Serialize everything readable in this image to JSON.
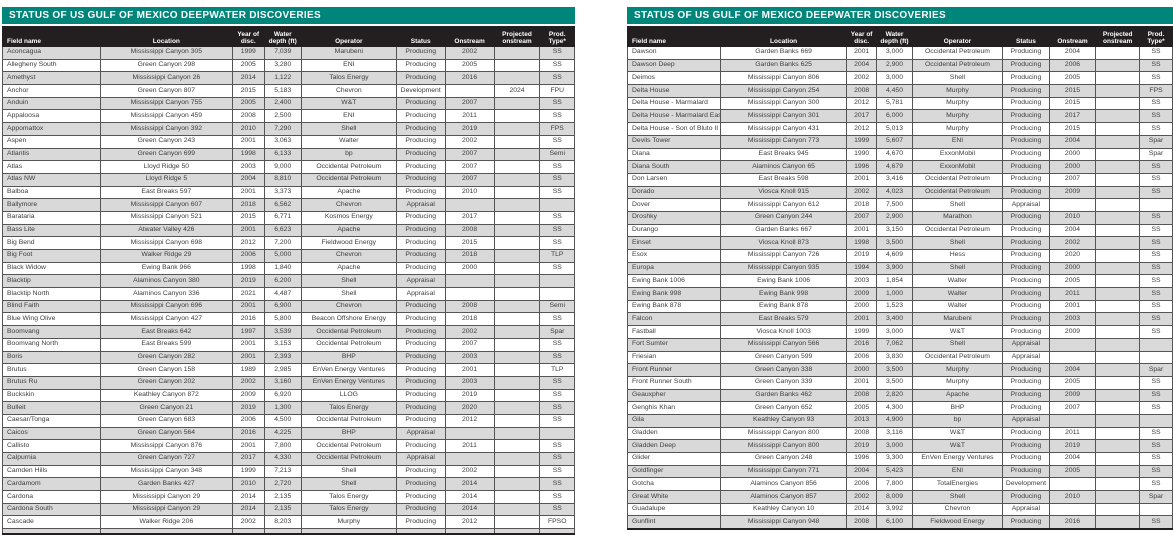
{
  "page_title": "STATUS OF US GULF OF MEXICO DEEPWATER DISCOVERIES",
  "colors": {
    "title_bar_teal": "#00857B",
    "header_black": "#231F20",
    "shaded_row_gray": "#D9D9D9",
    "row_white": "#FFFFFF",
    "cell_text": "#3D3D3D"
  },
  "columns": [
    "Field name",
    "Location",
    "Year of disc.",
    "Water depth (ft)",
    "Operator",
    "Status",
    "Onstream",
    "Projected onstream",
    "Prod. Type*"
  ],
  "tables": [
    {
      "name": "fields-a-to-c",
      "shaded_first_row": true,
      "partial_row_visible": true,
      "rows": [
        [
          "Aconcagua",
          "Mississippi Canyon 305",
          "1999",
          "7,039",
          "Marubeni",
          "Producing",
          "2002",
          "",
          "SS"
        ],
        [
          "Allegheny South",
          "Green Canyon 298",
          "2005",
          "3,280",
          "ENI",
          "Producing",
          "2005",
          "",
          "SS"
        ],
        [
          "Amethyst",
          "Mississippi Canyon 26",
          "2014",
          "1,122",
          "Talos Energy",
          "Producing",
          "2016",
          "",
          "SS"
        ],
        [
          "Anchor",
          "Green Canyon 807",
          "2015",
          "5,183",
          "Chevron",
          "Development",
          "",
          "2024",
          "FPU"
        ],
        [
          "Anduin",
          "Mississippi Canyon 755",
          "2005",
          "2,400",
          "W&T",
          "Producing",
          "2007",
          "",
          "SS"
        ],
        [
          "Appaloosa",
          "Mississippi Canyon 459",
          "2008",
          "2,500",
          "ENI",
          "Producing",
          "2011",
          "",
          "SS"
        ],
        [
          "Appomattox",
          "Mississippi Canyon 392",
          "2010",
          "7,290",
          "Shell",
          "Producing",
          "2019",
          "",
          "FPS"
        ],
        [
          "Aspen",
          "Green Canyon 243",
          "2001",
          "3,063",
          "Walter",
          "Producing",
          "2002",
          "",
          "SS"
        ],
        [
          "Atlantis",
          "Green Canyon 699",
          "1998",
          "6,133",
          "bp",
          "Producing",
          "2007",
          "",
          "Semi"
        ],
        [
          "Atlas",
          "Lloyd Ridge 50",
          "2003",
          "9,000",
          "Occidental Petroleum",
          "Producing",
          "2007",
          "",
          "SS"
        ],
        [
          "Atlas NW",
          "Lloyd Ridge 5",
          "2004",
          "8,810",
          "Occidental Petroleum",
          "Producing",
          "2007",
          "",
          "SS"
        ],
        [
          "Balboa",
          "East Breaks 597",
          "2001",
          "3,373",
          "Apache",
          "Producing",
          "2010",
          "",
          "SS"
        ],
        [
          "Ballymore",
          "Mississippi Canyon 607",
          "2018",
          "6,562",
          "Chevron",
          "Appraisal",
          "",
          "",
          ""
        ],
        [
          "Barataria",
          "Mississippi Canyon 521",
          "2015",
          "6,771",
          "Kosmos Energy",
          "Producing",
          "2017",
          "",
          "SS"
        ],
        [
          "Bass Lite",
          "Atwater Valley 426",
          "2001",
          "6,623",
          "Apache",
          "Producing",
          "2008",
          "",
          "SS"
        ],
        [
          "Big Bend",
          "Mississippi Canyon 698",
          "2012",
          "7,200",
          "Fieldwood Energy",
          "Producing",
          "2015",
          "",
          "SS"
        ],
        [
          "Big Foot",
          "Walker Ridge 29",
          "2006",
          "5,000",
          "Chevron",
          "Producing",
          "2018",
          "",
          "TLP"
        ],
        [
          "Black Widow",
          "Ewing Bank 966",
          "1998",
          "1,840",
          "Apache",
          "Producing",
          "2000",
          "",
          "SS"
        ],
        [
          "Blacktip",
          "Alaminos Canyon 380",
          "2019",
          "6,200",
          "Shell",
          "Appraisal",
          "",
          "",
          ""
        ],
        [
          "Blacktip North",
          "Alaminos Canyon 336",
          "2021",
          "4,487",
          "Shell",
          "Appraisal",
          "",
          "",
          ""
        ],
        [
          "Blind Faith",
          "Mississippi Canyon 696",
          "2001",
          "6,900",
          "Chevron",
          "Producing",
          "2008",
          "",
          "Semi"
        ],
        [
          "Blue Wing Olive",
          "Mississippi Canyon 427",
          "2016",
          "5,800",
          "Beacon Offshore Energy",
          "Producing",
          "2018",
          "",
          "SS"
        ],
        [
          "Boomvang",
          "East Breaks 642",
          "1997",
          "3,539",
          "Occidental Petroleum",
          "Producing",
          "2002",
          "",
          "Spar"
        ],
        [
          "Boomvang North",
          "East Breaks 599",
          "2001",
          "3,153",
          "Occidental Petroleum",
          "Producing",
          "2007",
          "",
          "SS"
        ],
        [
          "Boris",
          "Green Canyon 282",
          "2001",
          "2,393",
          "BHP",
          "Producing",
          "2003",
          "",
          "SS"
        ],
        [
          "Brutus",
          "Green Canyon 158",
          "1989",
          "2,985",
          "EnVen Energy Ventures",
          "Producing",
          "2001",
          "",
          "TLP"
        ],
        [
          "Brutus Ru",
          "Green Canyon 202",
          "2002",
          "3,160",
          "EnVen Energy Ventures",
          "Producing",
          "2003",
          "",
          "SS"
        ],
        [
          "Buckskin",
          "Keathley Canyon 872",
          "2009",
          "6,920",
          "LLOG",
          "Producing",
          "2019",
          "",
          "SS"
        ],
        [
          "Bulleit",
          "Green Canyon 21",
          "2019",
          "1,300",
          "Talos Energy",
          "Producing",
          "2020",
          "",
          "SS"
        ],
        [
          "Caesar/Tonga",
          "Green Canyon 683",
          "2006",
          "4,500",
          "Occidental Petroleum",
          "Producing",
          "2012",
          "",
          "SS"
        ],
        [
          "Caicos",
          "Green Canyon 564",
          "2016",
          "4,225",
          "BHP",
          "Appraisal",
          "",
          "",
          ""
        ],
        [
          "Callisto",
          "Mississippi Canyon 876",
          "2001",
          "7,800",
          "Occidental Petroleum",
          "Producing",
          "2011",
          "",
          "SS"
        ],
        [
          "Calpurnia",
          "Green Canyon 727",
          "2017",
          "4,330",
          "Occidental Petroleum",
          "Appraisal",
          "",
          "",
          "SS"
        ],
        [
          "Camden Hills",
          "Mississippi Canyon 348",
          "1999",
          "7,213",
          "Shell",
          "Producing",
          "2002",
          "",
          "SS"
        ],
        [
          "Cardamom",
          "Garden Banks 427",
          "2010",
          "2,720",
          "Shell",
          "Producing",
          "2014",
          "",
          "SS"
        ],
        [
          "Cardona",
          "Mississippi Canyon 29",
          "2014",
          "2,135",
          "Talos Energy",
          "Producing",
          "2014",
          "",
          "SS"
        ],
        [
          "Cardona South",
          "Mississippi Canyon 29",
          "2014",
          "2,135",
          "Talos Energy",
          "Producing",
          "2014",
          "",
          "SS"
        ],
        [
          "Cascade",
          "Walker Ridge 206",
          "2002",
          "8,203",
          "Murphy",
          "Producing",
          "2012",
          "",
          "FPSO"
        ]
      ]
    },
    {
      "name": "fields-d-to-g",
      "shaded_first_row": false,
      "partial_row_visible": false,
      "rows": [
        [
          "Dawson",
          "Garden Banks 669",
          "2001",
          "3,000",
          "Occidental Petroleum",
          "Producing",
          "2004",
          "",
          "SS"
        ],
        [
          "Dawson Deep",
          "Garden Banks 625",
          "2004",
          "2,900",
          "Occidental Petroleum",
          "Producing",
          "2006",
          "",
          "SS"
        ],
        [
          "Deimos",
          "Mississippi Canyon 806",
          "2002",
          "3,000",
          "Shell",
          "Producing",
          "2005",
          "",
          "SS"
        ],
        [
          "Delta House",
          "Mississippi Canyon 254",
          "2008",
          "4,450",
          "Murphy",
          "Producing",
          "2015",
          "",
          "FPS"
        ],
        [
          "Delta House - Marmalard",
          "Mississippi Canyon 300",
          "2012",
          "5,781",
          "Murphy",
          "Producing",
          "2015",
          "",
          "SS"
        ],
        [
          "Delta House - Marmalard East",
          "Mississippi Canyon 301",
          "2017",
          "6,000",
          "Murphy",
          "Producing",
          "2017",
          "",
          "SS"
        ],
        [
          "Delta House - Son of Bluto II",
          "Mississippi Canyon 431",
          "2012",
          "5,013",
          "Murphy",
          "Producing",
          "2015",
          "",
          "SS"
        ],
        [
          "Devils Tower",
          "Mississippi Canyon 773",
          "1999",
          "5,607",
          "ENI",
          "Producing",
          "2004",
          "",
          "Spar"
        ],
        [
          "Diana",
          "East Breaks 945",
          "1990",
          "4,670",
          "ExxonMobil",
          "Producing",
          "2000",
          "",
          "Spar"
        ],
        [
          "Diana South",
          "Alaminos Canyon 65",
          "1996",
          "4,679",
          "ExxonMobil",
          "Producing",
          "2000",
          "",
          "SS"
        ],
        [
          "Don Larsen",
          "East Breaks 598",
          "2001",
          "3,416",
          "Occidental Petroleum",
          "Producing",
          "2007",
          "",
          "SS"
        ],
        [
          "Dorado",
          "Viosca Knoll 915",
          "2002",
          "4,023",
          "Occidental Petroleum",
          "Producing",
          "2009",
          "",
          "SS"
        ],
        [
          "Dover",
          "Mississippi Canyon 612",
          "2018",
          "7,500",
          "Shell",
          "Appraisal",
          "",
          "",
          ""
        ],
        [
          "Droshky",
          "Green Canyon 244",
          "2007",
          "2,900",
          "Marathon",
          "Producing",
          "2010",
          "",
          "SS"
        ],
        [
          "Durango",
          "Garden Banks 667",
          "2001",
          "3,150",
          "Occidental Petroleum",
          "Producing",
          "2004",
          "",
          "SS"
        ],
        [
          "Einset",
          "Viosca Knoll 873",
          "1998",
          "3,500",
          "Shell",
          "Producing",
          "2002",
          "",
          "SS"
        ],
        [
          "Esox",
          "Mississippi Canyon 726",
          "2019",
          "4,609",
          "Hess",
          "Producing",
          "2020",
          "",
          "SS"
        ],
        [
          "Europa",
          "Mississippi Canyon 935",
          "1994",
          "3,900",
          "Shell",
          "Producing",
          "2000",
          "",
          "SS"
        ],
        [
          "Ewing Bank 1006",
          "Ewing Bank 1006",
          "2003",
          "1,854",
          "Walter",
          "Producing",
          "2005",
          "",
          "SS"
        ],
        [
          "Ewing Bank 998",
          "Ewing Bank 998",
          "2009",
          "1,000",
          "Walter",
          "Producing",
          "2011",
          "",
          "SS"
        ],
        [
          "Ewing Bank 878",
          "Ewing Bank 878",
          "2000",
          "1,523",
          "Walter",
          "Producing",
          "2001",
          "",
          "SS"
        ],
        [
          "Falcon",
          "East Breaks 579",
          "2001",
          "3,400",
          "Marubeni",
          "Producing",
          "2003",
          "",
          "SS"
        ],
        [
          "Fastball",
          "Viosca Knoll 1003",
          "1999",
          "3,000",
          "W&T",
          "Producing",
          "2009",
          "",
          "SS"
        ],
        [
          "Fort Sumter",
          "Mississippi Canyon 566",
          "2016",
          "7,062",
          "Shell",
          "Appraisal",
          "",
          "",
          ""
        ],
        [
          "Friesian",
          "Green Canyon 599",
          "2006",
          "3,830",
          "Occidental Petroleum",
          "Appraisal",
          "",
          "",
          ""
        ],
        [
          "Front Runner",
          "Green Canyon 338",
          "2000",
          "3,500",
          "Murphy",
          "Producing",
          "2004",
          "",
          "Spar"
        ],
        [
          "Front Runner South",
          "Green Canyon 339",
          "2001",
          "3,500",
          "Murphy",
          "Producing",
          "2005",
          "",
          "SS"
        ],
        [
          "Geauxpher",
          "Garden Banks 462",
          "2008",
          "2,820",
          "Apache",
          "Producing",
          "2009",
          "",
          "SS"
        ],
        [
          "Genghis Khan",
          "Green Canyon 652",
          "2005",
          "4,300",
          "BHP",
          "Producing",
          "2007",
          "",
          "SS"
        ],
        [
          "Gila",
          "Keathley Canyon 93",
          "2013",
          "4,900",
          "bp",
          "Appraisal",
          "",
          "",
          ""
        ],
        [
          "Gladden",
          "Mississippi Canyon 800",
          "2008",
          "3,116",
          "W&T",
          "Producing",
          "2011",
          "",
          "SS"
        ],
        [
          "Gladden Deep",
          "Mississippi Canyon 800",
          "2019",
          "3,000",
          "W&T",
          "Producing",
          "2019",
          "",
          "SS"
        ],
        [
          "Glider",
          "Green Canyon 248",
          "1996",
          "3,300",
          "EnVen Energy Ventures",
          "Producing",
          "2004",
          "",
          "SS"
        ],
        [
          "Goldfinger",
          "Mississippi Canyon 771",
          "2004",
          "5,423",
          "ENI",
          "Producing",
          "2005",
          "",
          "SS"
        ],
        [
          "Gotcha",
          "Alaminos Canyon 856",
          "2006",
          "7,800",
          "TotalEnergies",
          "Development",
          "",
          "",
          "SS"
        ],
        [
          "Great White",
          "Alaminos Canyon 857",
          "2002",
          "8,009",
          "Shell",
          "Producing",
          "2010",
          "",
          "Spar"
        ],
        [
          "Guadalupe",
          "Keathley Canyon 10",
          "2014",
          "3,992",
          "Chevron",
          "Appraisal",
          "",
          "",
          ""
        ],
        [
          "Gunflint",
          "Mississippi Canyon 948",
          "2008",
          "6,100",
          "Fieldwood Energy",
          "Producing",
          "2016",
          "",
          "SS"
        ]
      ]
    }
  ]
}
